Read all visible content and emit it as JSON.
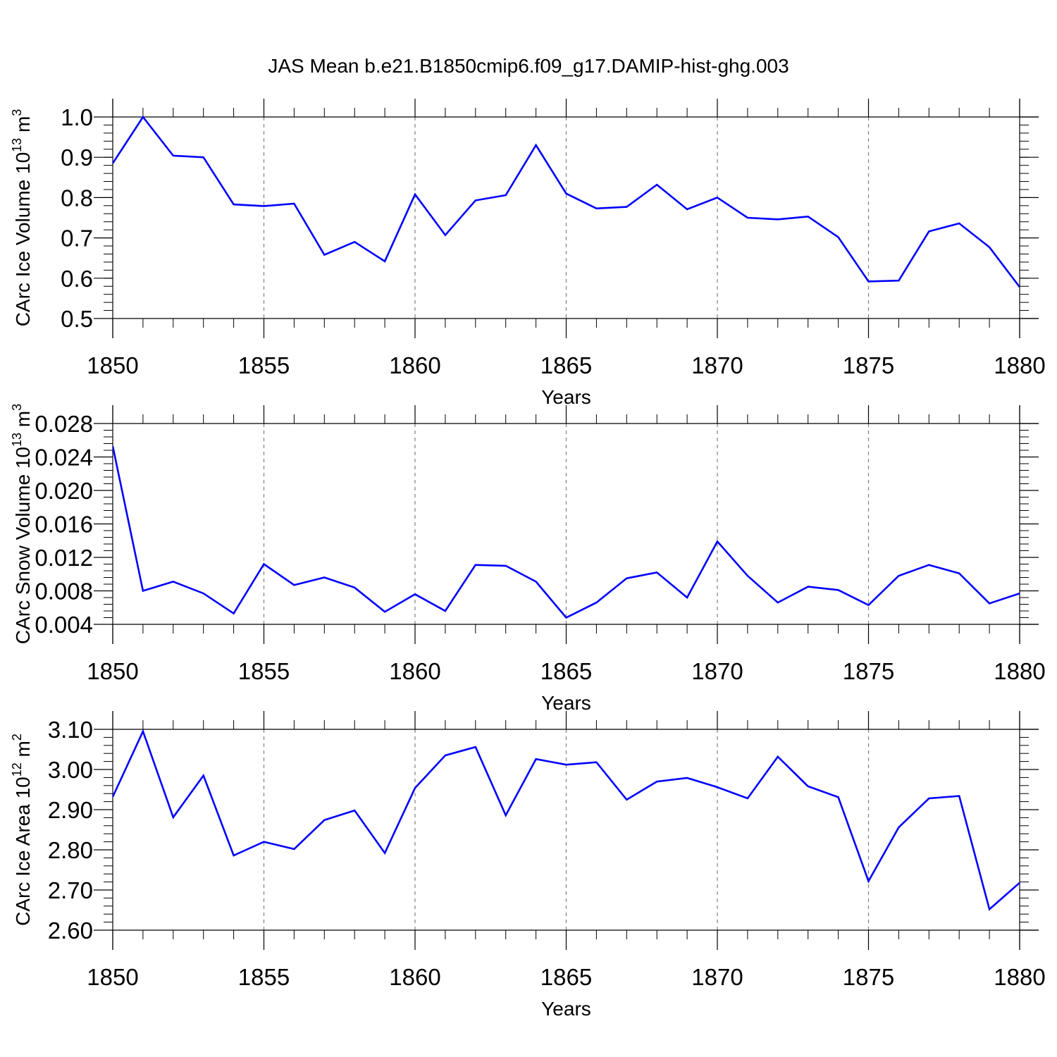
{
  "title": "JAS Mean b.e21.B1850cmip6.f09_g17.DAMIP-hist-ghg.003",
  "colors": {
    "line": "#0000ff",
    "axis": "#000000",
    "grid": "#808080"
  },
  "chart_data": [
    {
      "type": "line",
      "xlabel": "Years",
      "ylabel": "CArc Ice Volume 10",
      "ylabel_exp": "13",
      "ylabel_unit": " m",
      "ylabel_unit_exp": "3",
      "xlim": [
        1850,
        1880
      ],
      "ylim": [
        0.5,
        1.0
      ],
      "xticks": [
        "1850",
        "1855",
        "1860",
        "1865",
        "1870",
        "1875",
        "1880"
      ],
      "yticks": [
        "0.5",
        "0.6",
        "0.7",
        "0.8",
        "0.9",
        "1.0"
      ],
      "grid": "vertical-dashed",
      "x": [
        1850,
        1851,
        1852,
        1853,
        1854,
        1855,
        1856,
        1857,
        1858,
        1859,
        1860,
        1861,
        1862,
        1863,
        1864,
        1865,
        1866,
        1867,
        1868,
        1869,
        1870,
        1871,
        1872,
        1873,
        1874,
        1875,
        1876,
        1877,
        1878,
        1879,
        1880
      ],
      "values": [
        0.885,
        1.0,
        0.904,
        0.9,
        0.783,
        0.779,
        0.785,
        0.658,
        0.69,
        0.642,
        0.808,
        0.707,
        0.793,
        0.806,
        0.93,
        0.81,
        0.773,
        0.777,
        0.832,
        0.771,
        0.8,
        0.75,
        0.746,
        0.753,
        0.702,
        0.592,
        0.594,
        0.716,
        0.736,
        0.677,
        0.578
      ]
    },
    {
      "type": "line",
      "xlabel": "Years",
      "ylabel": "CArc Snow Volume 10",
      "ylabel_exp": "13",
      "ylabel_unit": " m",
      "ylabel_unit_exp": "3",
      "xlim": [
        1850,
        1880
      ],
      "ylim": [
        0.004,
        0.028
      ],
      "xticks": [
        "1850",
        "1855",
        "1860",
        "1865",
        "1870",
        "1875",
        "1880"
      ],
      "yticks": [
        "0.004",
        "0.008",
        "0.012",
        "0.016",
        "0.020",
        "0.024",
        "0.028"
      ],
      "grid": "vertical-dashed",
      "x": [
        1850,
        1851,
        1852,
        1853,
        1854,
        1855,
        1856,
        1857,
        1858,
        1859,
        1860,
        1861,
        1862,
        1863,
        1864,
        1865,
        1866,
        1867,
        1868,
        1869,
        1870,
        1871,
        1872,
        1873,
        1874,
        1875,
        1876,
        1877,
        1878,
        1879,
        1880
      ],
      "values": [
        0.0253,
        0.008,
        0.0091,
        0.0077,
        0.0053,
        0.0112,
        0.0087,
        0.0096,
        0.0084,
        0.0055,
        0.0076,
        0.0056,
        0.0111,
        0.011,
        0.0091,
        0.0048,
        0.0066,
        0.0095,
        0.0102,
        0.0072,
        0.0139,
        0.0098,
        0.0066,
        0.0085,
        0.0081,
        0.0063,
        0.0098,
        0.0111,
        0.0101,
        0.0065,
        0.0077
      ]
    },
    {
      "type": "line",
      "xlabel": "Years",
      "ylabel": "CArc Ice Area 10",
      "ylabel_exp": "12",
      "ylabel_unit": " m",
      "ylabel_unit_exp": "2",
      "xlim": [
        1850,
        1880
      ],
      "ylim": [
        2.6,
        3.1
      ],
      "xticks": [
        "1850",
        "1855",
        "1860",
        "1865",
        "1870",
        "1875",
        "1880"
      ],
      "yticks": [
        "2.60",
        "2.70",
        "2.80",
        "2.90",
        "3.00",
        "3.10"
      ],
      "grid": "vertical-dashed",
      "x": [
        1850,
        1851,
        1852,
        1853,
        1854,
        1855,
        1856,
        1857,
        1858,
        1859,
        1860,
        1861,
        1862,
        1863,
        1864,
        1865,
        1866,
        1867,
        1868,
        1869,
        1870,
        1871,
        1872,
        1873,
        1874,
        1875,
        1876,
        1877,
        1878,
        1879,
        1880
      ],
      "values": [
        2.932,
        3.095,
        2.881,
        2.985,
        2.786,
        2.82,
        2.802,
        2.874,
        2.898,
        2.792,
        2.954,
        3.035,
        3.056,
        2.886,
        3.026,
        3.012,
        3.018,
        2.925,
        2.97,
        2.979,
        2.956,
        2.928,
        3.032,
        2.958,
        2.931,
        2.722,
        2.856,
        2.928,
        2.934,
        2.652,
        2.718
      ]
    }
  ]
}
